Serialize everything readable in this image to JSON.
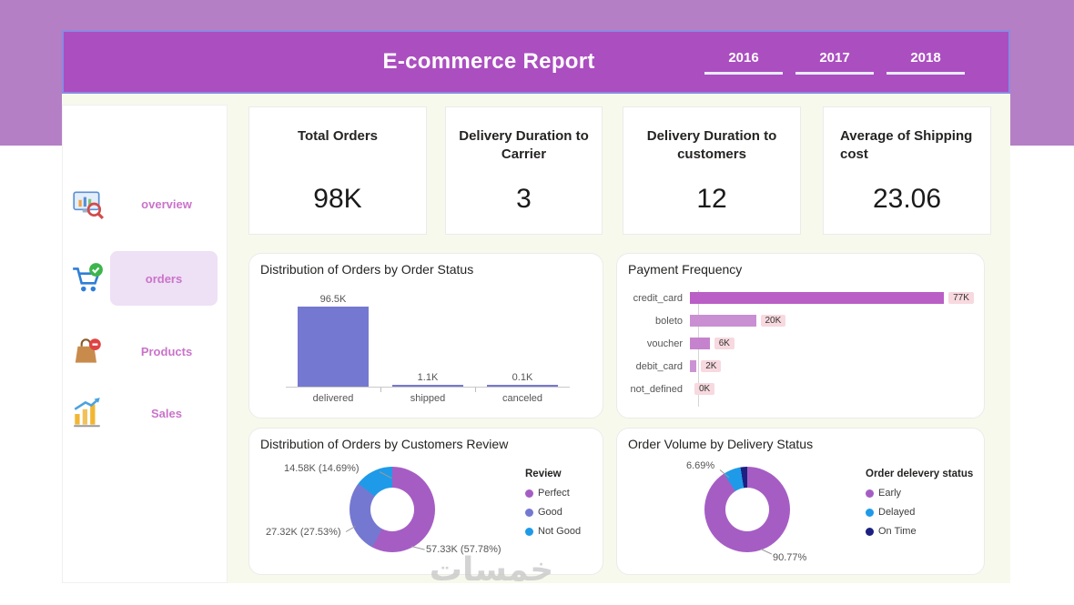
{
  "header": {
    "title": "E-commerce Report",
    "years": [
      "2016",
      "2017",
      "2018"
    ]
  },
  "sidebar": {
    "items": [
      {
        "label": "overview",
        "icon": "overview-monitor-icon",
        "active": false
      },
      {
        "label": "orders",
        "icon": "orders-cart-icon",
        "active": true
      },
      {
        "label": "Products",
        "icon": "products-bag-icon",
        "active": false
      },
      {
        "label": "Sales",
        "icon": "sales-growth-icon",
        "active": false
      }
    ]
  },
  "kpis": [
    {
      "title": "Total Orders",
      "value": "98K"
    },
    {
      "title": "Delivery Duration to Carrier",
      "value": "3"
    },
    {
      "title": "Delivery Duration to customers",
      "value": "12"
    },
    {
      "title": "Average of Shipping cost",
      "value": "23.06"
    }
  ],
  "chart_data": [
    {
      "type": "bar",
      "title": "Distribution of Orders by Order Status",
      "categories": [
        "delivered",
        "shipped",
        "canceled"
      ],
      "values": [
        96.5,
        1.1,
        0.1
      ],
      "unit": "K",
      "value_labels": [
        "96.5K",
        "1.1K",
        "0.1K"
      ],
      "ylim": [
        0,
        100
      ],
      "bar_color": "#7578d1",
      "grid": false,
      "legend_position": "none"
    },
    {
      "type": "bar",
      "orientation": "horizontal",
      "title": "Payment Frequency",
      "categories": [
        "credit_card",
        "boleto",
        "voucher",
        "debit_card",
        "not_defined"
      ],
      "values": [
        77,
        20,
        6,
        2,
        0
      ],
      "unit": "K",
      "value_labels": [
        "77K",
        "20K",
        "6K",
        "2K",
        "0K"
      ],
      "xlim": [
        0,
        80
      ],
      "bar_colors": [
        "#b95fc5",
        "#c98fd2",
        "#c583cd",
        "#cb93d3",
        "#cb93d3"
      ],
      "grid": false,
      "legend_position": "none"
    },
    {
      "type": "pie",
      "subtype": "donut",
      "title": "Distribution of Orders by Customers Review",
      "legend_title": "Review",
      "legend_position": "right",
      "labels": [
        "Perfect",
        "Good",
        "Not Good"
      ],
      "values_k": [
        57.33,
        27.32,
        14.58
      ],
      "percents": [
        57.78,
        27.53,
        14.69
      ],
      "callouts": [
        "57.33K (57.78%)",
        "27.32K (27.53%)",
        "14.58K (14.69%)"
      ],
      "colors": [
        "#a55dc4",
        "#7578d1",
        "#1e9ae8"
      ]
    },
    {
      "type": "pie",
      "subtype": "donut",
      "title": "Order Volume by Delivery Status",
      "legend_title": "Order delevery status",
      "legend_position": "right",
      "labels": [
        "Early",
        "Delayed",
        "On Time"
      ],
      "percents": [
        90.77,
        6.69,
        2.54
      ],
      "callouts": [
        "90.77%",
        "6.69%"
      ],
      "colors": [
        "#a55dc4",
        "#1e9ae8",
        "#1c2081"
      ]
    }
  ],
  "watermark": "خمسات",
  "colors": {
    "page_top": "#b47fc5",
    "banner": "#ab4ec0",
    "banner_border": "#8a8ae0",
    "body_bg": "#f7f9ec",
    "card_bg": "#ffffff",
    "sidebar_active_bg": "#eee0f5",
    "sidebar_text": "#ca73ca",
    "payment_badge_bg": "#f7d9df"
  }
}
